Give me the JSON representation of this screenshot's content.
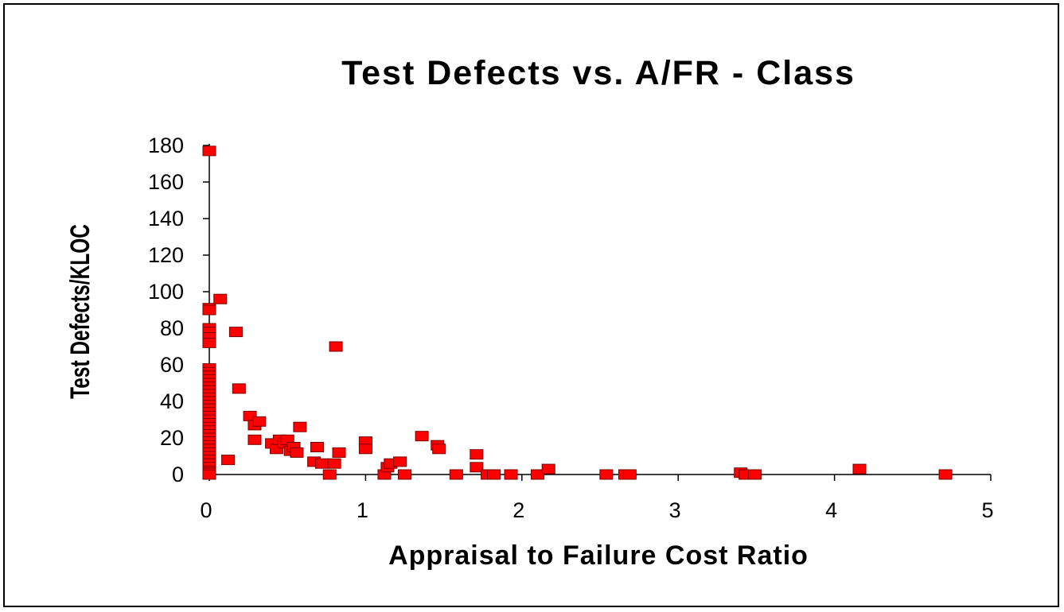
{
  "chart_data": {
    "type": "scatter",
    "title": "Test Defects vs. A/FR - Class",
    "xlabel": "Appraisal to Failure Cost Ratio",
    "ylabel": "Test Defects/KLOC",
    "xlim": [
      0,
      5
    ],
    "ylim": [
      0,
      180
    ],
    "xticks": [
      "0",
      "1",
      "2",
      "3",
      "4",
      "5"
    ],
    "yticks": [
      "0",
      "20",
      "40",
      "60",
      "80",
      "100",
      "120",
      "140",
      "160",
      "180"
    ],
    "grid": false,
    "legend": "none",
    "marker_color": "#ff0000",
    "series": [
      {
        "points": [
          [
            0,
            177
          ],
          [
            0,
            91
          ],
          [
            0,
            90
          ],
          [
            0,
            80
          ],
          [
            0,
            78
          ],
          [
            0,
            75
          ],
          [
            0,
            72
          ],
          [
            0,
            58
          ],
          [
            0,
            56
          ],
          [
            0,
            54
          ],
          [
            0,
            52
          ],
          [
            0,
            50
          ],
          [
            0,
            48
          ],
          [
            0,
            46
          ],
          [
            0,
            44
          ],
          [
            0,
            42
          ],
          [
            0,
            40
          ],
          [
            0,
            38
          ],
          [
            0,
            36
          ],
          [
            0,
            34
          ],
          [
            0,
            32
          ],
          [
            0,
            30
          ],
          [
            0,
            28
          ],
          [
            0,
            26
          ],
          [
            0,
            24
          ],
          [
            0,
            22
          ],
          [
            0,
            20
          ],
          [
            0,
            18
          ],
          [
            0,
            16
          ],
          [
            0,
            14
          ],
          [
            0,
            12
          ],
          [
            0,
            10
          ],
          [
            0,
            8
          ],
          [
            0,
            6
          ],
          [
            0,
            4
          ],
          [
            0,
            2
          ],
          [
            0,
            1
          ],
          [
            0,
            0
          ],
          [
            0.07,
            96
          ],
          [
            0.12,
            8
          ],
          [
            0.17,
            78
          ],
          [
            0.19,
            47
          ],
          [
            0.26,
            32
          ],
          [
            0.29,
            27
          ],
          [
            0.29,
            19
          ],
          [
            0.32,
            29
          ],
          [
            0.4,
            17
          ],
          [
            0.43,
            14
          ],
          [
            0.45,
            19
          ],
          [
            0.48,
            17
          ],
          [
            0.5,
            19
          ],
          [
            0.52,
            13
          ],
          [
            0.54,
            15
          ],
          [
            0.56,
            12
          ],
          [
            0.58,
            26
          ],
          [
            0.67,
            7
          ],
          [
            0.69,
            15
          ],
          [
            0.72,
            6
          ],
          [
            0.77,
            0
          ],
          [
            0.8,
            6
          ],
          [
            0.81,
            70
          ],
          [
            0.83,
            12
          ],
          [
            1.0,
            18
          ],
          [
            1.0,
            14
          ],
          [
            1.12,
            0
          ],
          [
            1.14,
            4
          ],
          [
            1.16,
            6
          ],
          [
            1.22,
            7
          ],
          [
            1.25,
            0
          ],
          [
            1.36,
            21
          ],
          [
            1.46,
            16
          ],
          [
            1.47,
            14
          ],
          [
            1.58,
            0
          ],
          [
            1.71,
            11
          ],
          [
            1.71,
            4
          ],
          [
            1.78,
            0
          ],
          [
            1.82,
            0
          ],
          [
            1.93,
            0
          ],
          [
            2.1,
            0
          ],
          [
            2.17,
            3
          ],
          [
            2.54,
            0
          ],
          [
            2.66,
            0
          ],
          [
            2.69,
            0
          ],
          [
            3.4,
            1
          ],
          [
            3.43,
            0
          ],
          [
            3.49,
            0
          ],
          [
            4.16,
            3
          ],
          [
            4.71,
            0
          ]
        ]
      }
    ]
  }
}
